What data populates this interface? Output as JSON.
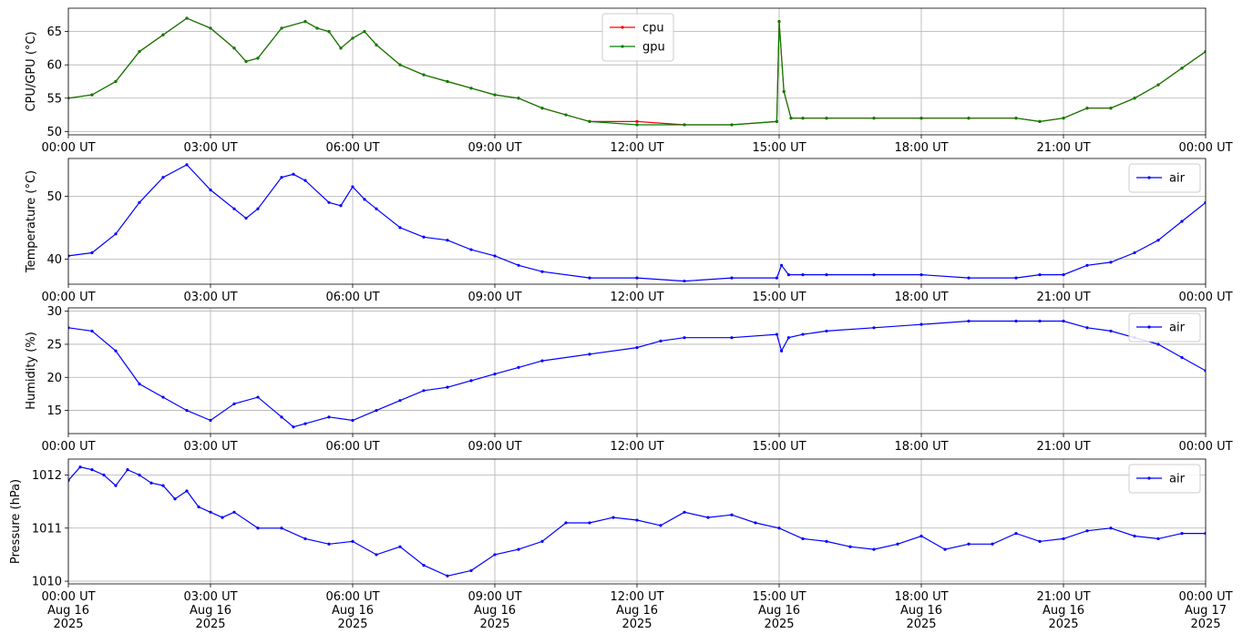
{
  "chart_data": [
    {
      "type": "line",
      "ylabel": "CPU/GPU (°C)",
      "ylim": [
        49.5,
        68.5
      ],
      "yticks": [
        50,
        55,
        60,
        65
      ],
      "xlim": [
        0,
        24
      ],
      "xticks": [
        "00:00 UT",
        "03:00 UT",
        "06:00 UT",
        "09:00 UT",
        "12:00 UT",
        "15:00 UT",
        "18:00 UT",
        "21:00 UT",
        "00:00 UT"
      ],
      "grid": true,
      "legend": "top-center",
      "series": [
        {
          "name": "cpu",
          "color": "#ff0000",
          "x": [
            0,
            0.5,
            1,
            1.5,
            2,
            2.5,
            3,
            3.5,
            3.75,
            4,
            4.5,
            5,
            5.25,
            5.5,
            5.75,
            6,
            6.25,
            6.5,
            7,
            7.5,
            8,
            8.5,
            9,
            9.5,
            10,
            10.5,
            11,
            12,
            13,
            14,
            14.95,
            15.0,
            15.1,
            15.25,
            15.5,
            16,
            17,
            18,
            19,
            20,
            20.5,
            21,
            21.5,
            22,
            22.5,
            23,
            23.5,
            24
          ],
          "y": [
            55,
            55.5,
            57.5,
            62,
            64.5,
            67,
            65.5,
            62.5,
            60.5,
            61,
            65.5,
            66.5,
            65.5,
            65,
            62.5,
            64,
            65,
            63,
            60,
            58.5,
            57.5,
            56.5,
            55.5,
            55,
            53.5,
            52.5,
            51.5,
            51.5,
            51,
            51,
            51.5,
            66.5,
            56,
            52,
            52,
            52,
            52,
            52,
            52,
            52,
            51.5,
            52,
            53.5,
            53.5,
            55,
            57,
            59.5,
            62
          ]
        },
        {
          "name": "gpu",
          "color": "#008000",
          "x": [
            0,
            0.5,
            1,
            1.5,
            2,
            2.5,
            3,
            3.5,
            3.75,
            4,
            4.5,
            5,
            5.25,
            5.5,
            5.75,
            6,
            6.25,
            6.5,
            7,
            7.5,
            8,
            8.5,
            9,
            9.5,
            10,
            10.5,
            11,
            12,
            13,
            14,
            14.95,
            15.0,
            15.1,
            15.25,
            15.5,
            16,
            17,
            18,
            19,
            20,
            20.5,
            21,
            21.5,
            22,
            22.5,
            23,
            23.5,
            24
          ],
          "y": [
            55,
            55.5,
            57.5,
            62,
            64.5,
            67,
            65.5,
            62.5,
            60.5,
            61,
            65.5,
            66.5,
            65.5,
            65,
            62.5,
            64,
            65,
            63,
            60,
            58.5,
            57.5,
            56.5,
            55.5,
            55,
            53.5,
            52.5,
            51.5,
            51,
            51,
            51,
            51.5,
            66.5,
            56,
            52,
            52,
            52,
            52,
            52,
            52,
            52,
            51.5,
            52,
            53.5,
            53.5,
            55,
            57,
            59.5,
            62
          ]
        }
      ]
    },
    {
      "type": "line",
      "ylabel": "Temperature (°C)",
      "ylim": [
        36,
        56
      ],
      "yticks": [
        40,
        50
      ],
      "xlim": [
        0,
        24
      ],
      "xticks": [
        "00:00 UT",
        "03:00 UT",
        "06:00 UT",
        "09:00 UT",
        "12:00 UT",
        "15:00 UT",
        "18:00 UT",
        "21:00 UT",
        "00:00 UT"
      ],
      "grid": true,
      "legend": "top-right",
      "series": [
        {
          "name": "air",
          "color": "#0000ff",
          "x": [
            0,
            0.5,
            1,
            1.5,
            2,
            2.5,
            3,
            3.5,
            3.75,
            4,
            4.5,
            4.75,
            5,
            5.5,
            5.75,
            6,
            6.25,
            6.5,
            7,
            7.5,
            8,
            8.5,
            9,
            9.5,
            10,
            11,
            12,
            13,
            14,
            14.95,
            15.05,
            15.2,
            15.5,
            16,
            17,
            18,
            19,
            20,
            20.5,
            21,
            21.5,
            22,
            22.5,
            23,
            23.5,
            24
          ],
          "y": [
            40.5,
            41,
            44,
            49,
            53,
            55,
            51,
            48,
            46.5,
            48,
            53,
            53.5,
            52.5,
            49,
            48.5,
            51.5,
            49.5,
            48,
            45,
            43.5,
            43,
            41.5,
            40.5,
            39,
            38,
            37,
            37,
            36.5,
            37,
            37,
            39,
            37.5,
            37.5,
            37.5,
            37.5,
            37.5,
            37,
            37,
            37.5,
            37.5,
            39,
            39.5,
            41,
            43,
            46,
            49
          ]
        }
      ]
    },
    {
      "type": "line",
      "ylabel": "Humidity (%)",
      "ylim": [
        11.5,
        30.5
      ],
      "yticks": [
        15,
        20,
        25,
        30
      ],
      "xlim": [
        0,
        24
      ],
      "xticks": [
        "00:00 UT",
        "03:00 UT",
        "06:00 UT",
        "09:00 UT",
        "12:00 UT",
        "15:00 UT",
        "18:00 UT",
        "21:00 UT",
        "00:00 UT"
      ],
      "grid": true,
      "legend": "top-right",
      "series": [
        {
          "name": "air",
          "color": "#0000ff",
          "x": [
            0,
            0.5,
            1,
            1.5,
            2,
            2.5,
            3,
            3.5,
            4,
            4.5,
            4.75,
            5,
            5.5,
            6,
            6.5,
            7,
            7.5,
            8,
            8.5,
            9,
            9.5,
            10,
            11,
            12,
            12.5,
            13,
            14,
            14.95,
            15.05,
            15.2,
            15.5,
            16,
            17,
            18,
            19,
            20,
            20.5,
            21,
            21.5,
            22,
            22.5,
            23,
            23.5,
            24
          ],
          "y": [
            27.5,
            27,
            24,
            19,
            17,
            15,
            13.5,
            16,
            17,
            14,
            12.5,
            13,
            14,
            13.5,
            15,
            16.5,
            18,
            18.5,
            19.5,
            20.5,
            21.5,
            22.5,
            23.5,
            24.5,
            25.5,
            26,
            26,
            26.5,
            24,
            26,
            26.5,
            27,
            27.5,
            28,
            28.5,
            28.5,
            28.5,
            28.5,
            27.5,
            27,
            26,
            25,
            23,
            21
          ]
        }
      ]
    },
    {
      "type": "line",
      "ylabel": "Pressure (hPa)",
      "ylim": [
        1009.95,
        1012.3
      ],
      "yticks": [
        1010,
        1011,
        1012
      ],
      "xlim": [
        0,
        24
      ],
      "xticks": [
        "00:00 UT\nAug 16\n2025",
        "03:00 UT\nAug 16\n2025",
        "06:00 UT\nAug 16\n2025",
        "09:00 UT\nAug 16\n2025",
        "12:00 UT\nAug 16\n2025",
        "15:00 UT\nAug 16\n2025",
        "18:00 UT\nAug 16\n2025",
        "21:00 UT\nAug 16\n2025",
        "00:00 UT\nAug 17\n2025"
      ],
      "grid": true,
      "legend": "top-right",
      "series": [
        {
          "name": "air",
          "color": "#0000ff",
          "x": [
            0,
            0.25,
            0.5,
            0.75,
            1,
            1.25,
            1.5,
            1.75,
            2,
            2.25,
            2.5,
            2.75,
            3,
            3.25,
            3.5,
            4,
            4.5,
            5,
            5.5,
            6,
            6.5,
            7,
            7.5,
            8,
            8.5,
            9,
            9.5,
            10,
            10.5,
            11,
            11.5,
            12,
            12.5,
            13,
            13.5,
            14,
            14.5,
            15,
            15.5,
            16,
            16.5,
            17,
            17.5,
            18,
            18.5,
            19,
            19.5,
            20,
            20.5,
            21,
            21.5,
            22,
            22.5,
            23,
            23.5,
            24
          ],
          "y": [
            1011.9,
            1012.15,
            1012.1,
            1012.0,
            1011.8,
            1012.1,
            1012.0,
            1011.85,
            1011.8,
            1011.55,
            1011.7,
            1011.4,
            1011.3,
            1011.2,
            1011.3,
            1011.0,
            1011.0,
            1010.8,
            1010.7,
            1010.75,
            1010.5,
            1010.65,
            1010.3,
            1010.1,
            1010.2,
            1010.5,
            1010.6,
            1010.75,
            1011.1,
            1011.1,
            1011.2,
            1011.15,
            1011.05,
            1011.3,
            1011.2,
            1011.25,
            1011.1,
            1011.0,
            1010.8,
            1010.75,
            1010.65,
            1010.6,
            1010.7,
            1010.85,
            1010.6,
            1010.7,
            1010.7,
            1010.9,
            1010.75,
            1010.8,
            1010.95,
            1011.0,
            1010.85,
            1010.8,
            1010.9,
            1010.9
          ]
        }
      ]
    }
  ]
}
